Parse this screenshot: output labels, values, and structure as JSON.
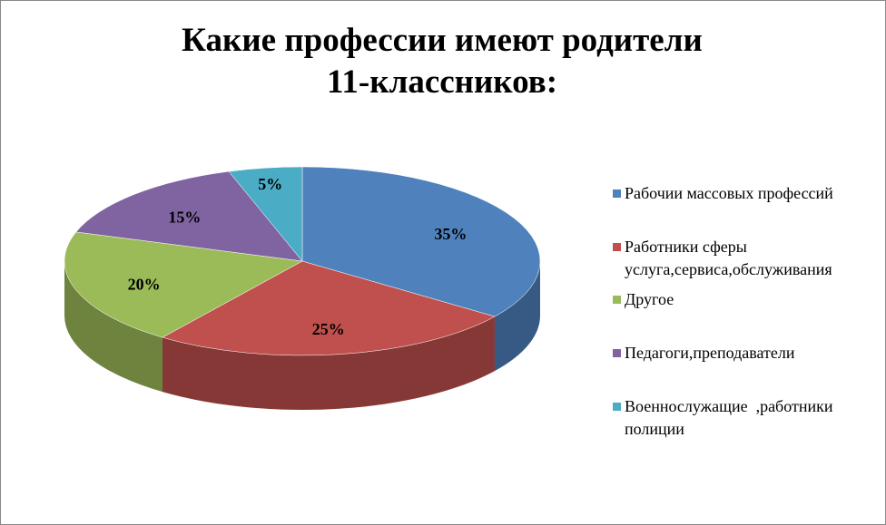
{
  "chart_data": {
    "type": "pie3d",
    "title": "Какие профессии имеют родители 11-классников:",
    "categories": [
      "Рабочии массовых профессий",
      "Работники сферы услуга,сервиса,обслуживания",
      "Другое",
      "Педагоги,преподаватели",
      "Военнослужащие  ,работники полиции"
    ],
    "values": [
      35,
      25,
      20,
      15,
      5
    ],
    "value_labels": [
      "35%",
      "25%",
      "20%",
      "15%",
      "5%"
    ],
    "colors": [
      "#4f81bd",
      "#c0504d",
      "#9bbb59",
      "#8064a2",
      "#4bacc6"
    ],
    "legend": "right"
  }
}
